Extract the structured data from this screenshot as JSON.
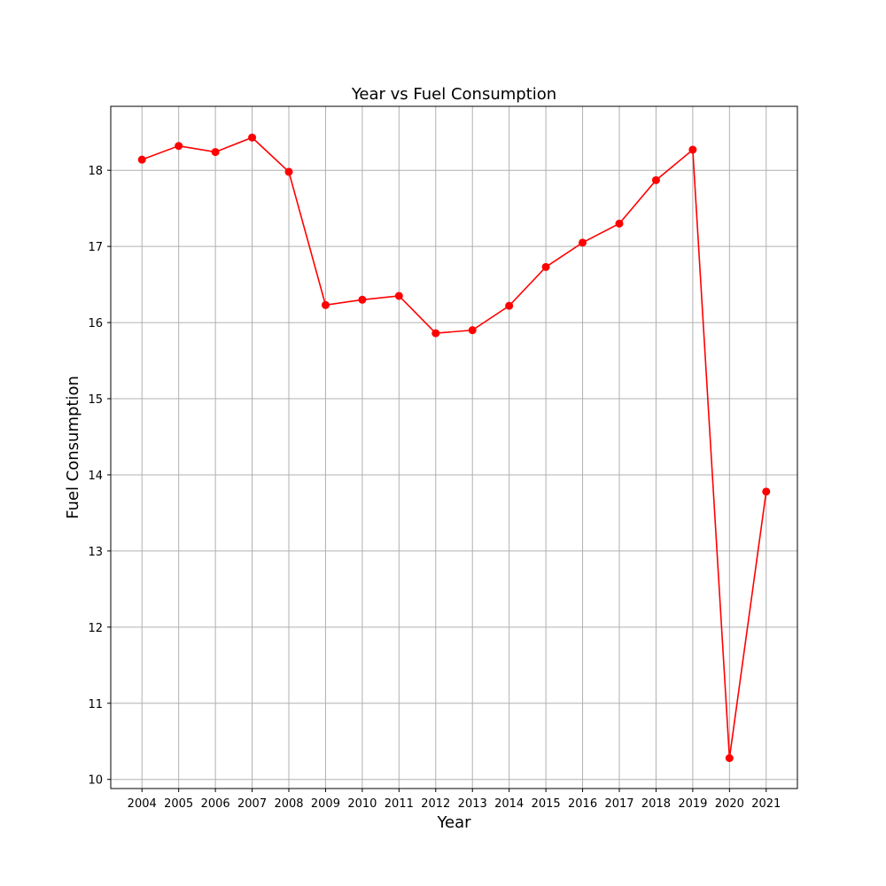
{
  "chart_data": {
    "type": "line",
    "title": "Year vs Fuel Consumption",
    "xlabel": "Year",
    "ylabel": "Fuel Consumption",
    "x": [
      2004,
      2005,
      2006,
      2007,
      2008,
      2009,
      2010,
      2011,
      2012,
      2013,
      2014,
      2015,
      2016,
      2017,
      2018,
      2019,
      2020,
      2021
    ],
    "series": [
      {
        "values": [
          18.14,
          18.32,
          18.24,
          18.43,
          17.98,
          16.23,
          16.3,
          16.35,
          15.86,
          15.9,
          16.22,
          16.73,
          17.05,
          17.3,
          17.87,
          18.27,
          10.28,
          13.78
        ],
        "color": "#ff0000",
        "marker": "circle"
      }
    ],
    "xlim": [
      2003.15,
      2021.85
    ],
    "ylim": [
      9.88,
      18.84
    ],
    "yticks": [
      10,
      11,
      12,
      13,
      14,
      15,
      16,
      17,
      18
    ],
    "grid": true,
    "legend": false
  }
}
